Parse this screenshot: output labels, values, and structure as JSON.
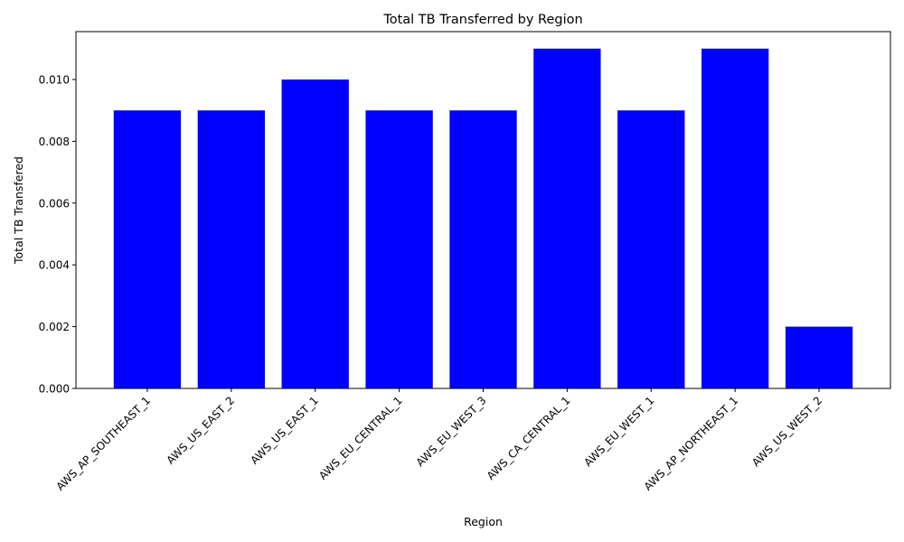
{
  "chart_data": {
    "type": "bar",
    "title": "Total TB Transferred by Region",
    "xlabel": "Region",
    "ylabel": "Total TB Transfered",
    "categories": [
      "AWS_AP_SOUTHEAST_1",
      "AWS_US_EAST_2",
      "AWS_US_EAST_1",
      "AWS_EU_CENTRAL_1",
      "AWS_EU_WEST_3",
      "AWS_CA_CENTRAL_1",
      "AWS_EU_WEST_1",
      "AWS_AP_NORTHEAST_1",
      "AWS_US_WEST_2"
    ],
    "values": [
      0.009,
      0.009,
      0.01,
      0.009,
      0.009,
      0.011,
      0.009,
      0.011,
      0.002
    ],
    "yticks": [
      "0.000",
      "0.002",
      "0.004",
      "0.006",
      "0.008",
      "0.010"
    ],
    "ylim": [
      0,
      0.01155
    ],
    "bar_color": "#0000ff",
    "grid": false,
    "legend": "none"
  }
}
